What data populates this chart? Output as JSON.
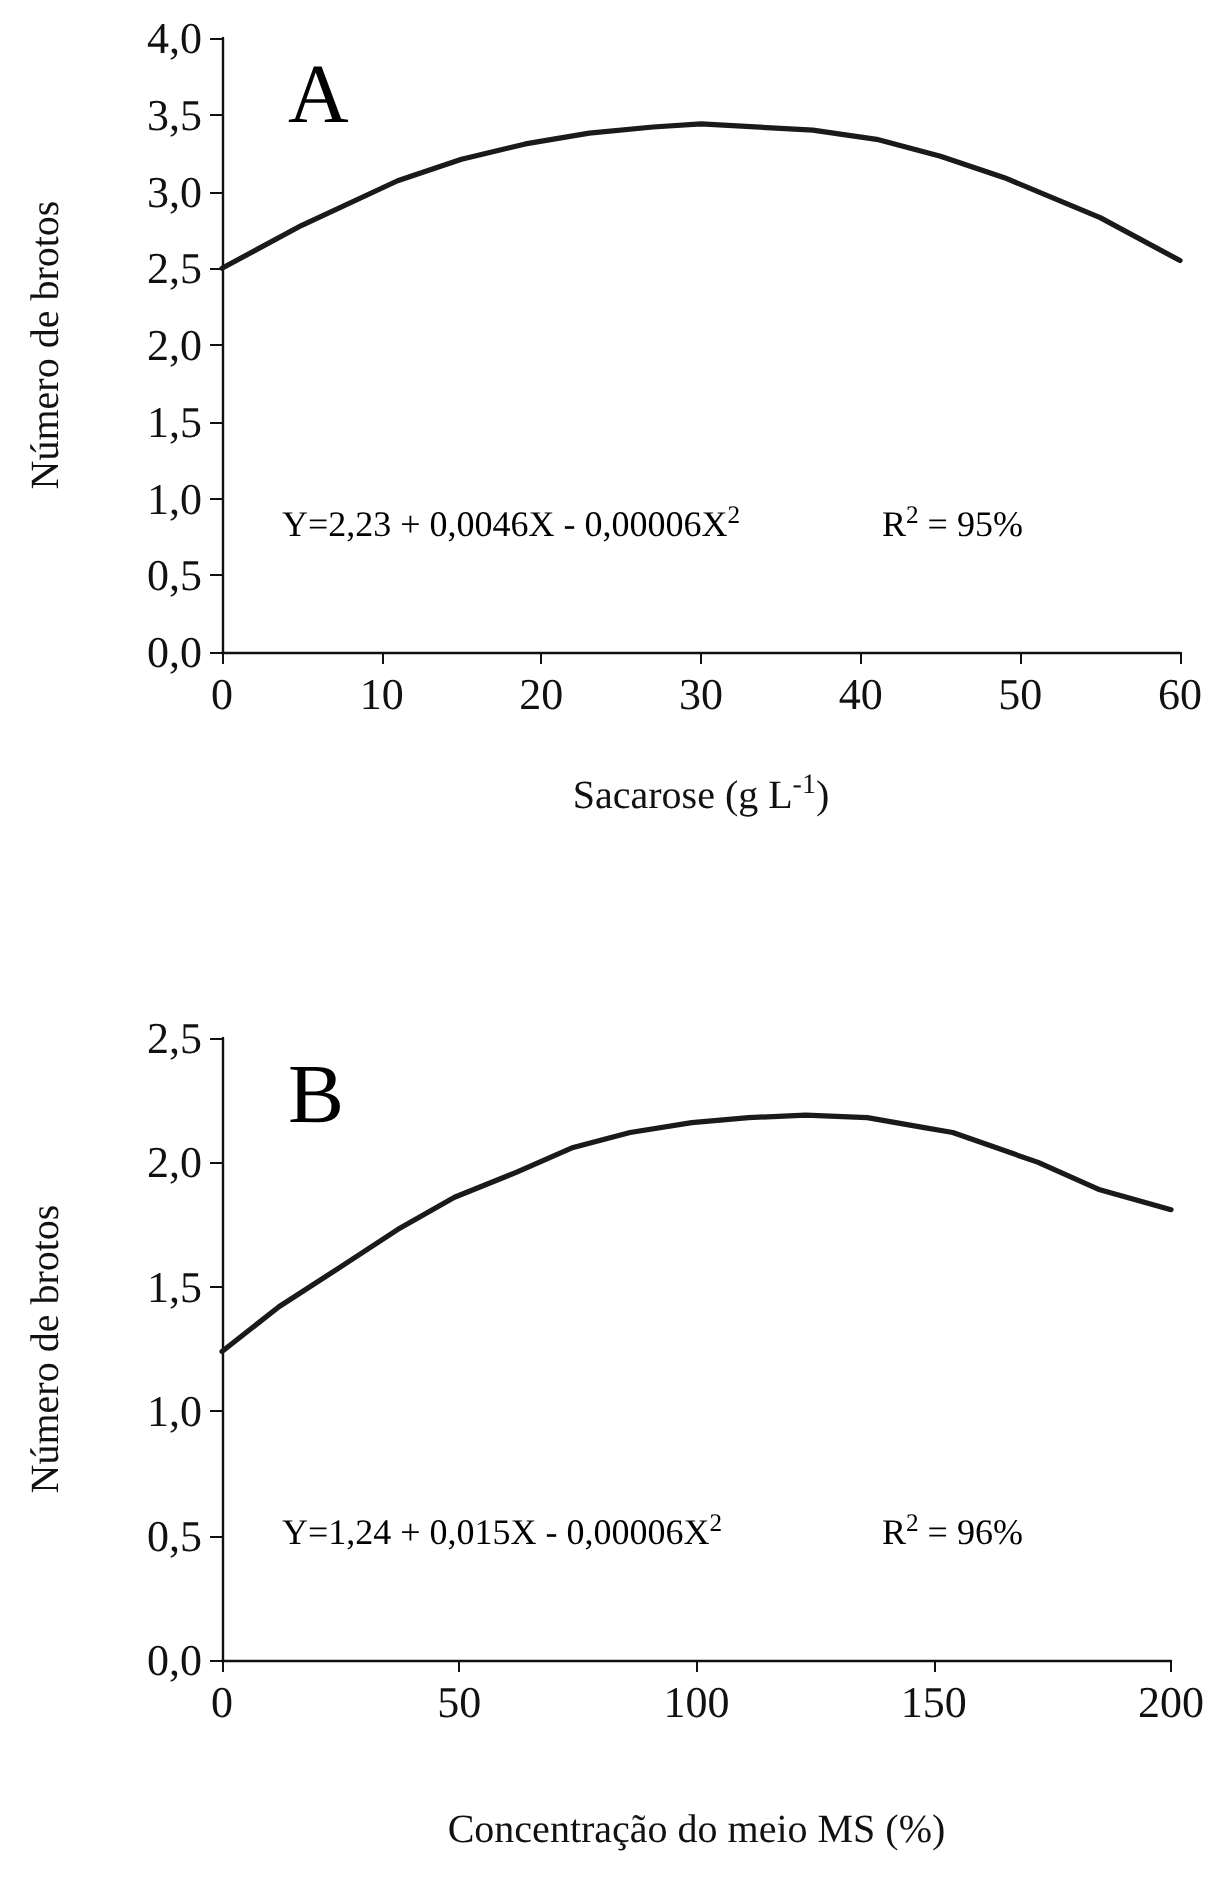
{
  "chart_data": [
    {
      "type": "line",
      "xlabel": "Sacarose (g L$^{-1}$)",
      "ylabel": "Número de brotos",
      "annotations": [
        "A",
        "Y=2,23 + 0,0046X - 0,00006X$^{2}$",
        "R$^{2}$ = 95%"
      ],
      "x": [
        0,
        5,
        11,
        15,
        19,
        23,
        27,
        30,
        37,
        41,
        45,
        49,
        55,
        60
      ],
      "series": [
        {
          "color": "#1a1a1a",
          "values": [
            2.5,
            2.78,
            3.07,
            3.21,
            3.31,
            3.38,
            3.42,
            3.44,
            3.4,
            3.34,
            3.23,
            3.09,
            2.83,
            2.55
          ]
        }
      ],
      "xlim": [
        0,
        60
      ],
      "xticks": [
        0,
        10,
        20,
        30,
        40,
        50,
        60
      ],
      "ylim": [
        0,
        4
      ],
      "yticks": [
        {
          "value": 0,
          "label": "0,0"
        },
        {
          "value": 0.5,
          "label": "0,5"
        },
        {
          "value": 1,
          "label": "1,0"
        },
        {
          "value": 1.5,
          "label": "1,5"
        },
        {
          "value": 2,
          "label": "2,0"
        },
        {
          "value": 2.5,
          "label": "2,5"
        },
        {
          "value": 3,
          "label": "3,0"
        },
        {
          "value": 3.5,
          "label": "3,5"
        },
        {
          "value": 4,
          "label": "4,0"
        }
      ],
      "grid": false,
      "marker": "none",
      "line_style": "solid"
    },
    {
      "type": "line",
      "xlabel": "Concentração do meio MS (%)",
      "ylabel": "Número de brotos",
      "annotations": [
        "B",
        "Y=1,24 + 0,015X - 0,00006X$^{2}$",
        "R$^{2}$ = 96%"
      ],
      "x": [
        0,
        12,
        25,
        37,
        49,
        62,
        74,
        86,
        99,
        111,
        123,
        136,
        148,
        154,
        172,
        185,
        200
      ],
      "series": [
        {
          "color": "#1a1a1a",
          "values": [
            1.24,
            1.42,
            1.58,
            1.73,
            1.86,
            1.96,
            2.06,
            2.12,
            2.16,
            2.18,
            2.19,
            2.18,
            2.14,
            2.12,
            2.0,
            1.89,
            1.81
          ]
        }
      ],
      "xlim": [
        0,
        200
      ],
      "xticks": [
        0,
        50,
        100,
        150,
        200
      ],
      "ylim": [
        0,
        2.5
      ],
      "yticks": [
        {
          "value": 0,
          "label": "0,0"
        },
        {
          "value": 0.5,
          "label": "0,5"
        },
        {
          "value": 1,
          "label": "1,0"
        },
        {
          "value": 1.5,
          "label": "1,5"
        },
        {
          "value": 2,
          "label": "2,0"
        },
        {
          "value": 2.5,
          "label": "2,5"
        }
      ],
      "grid": false,
      "marker": "none",
      "line_style": "solid"
    }
  ]
}
